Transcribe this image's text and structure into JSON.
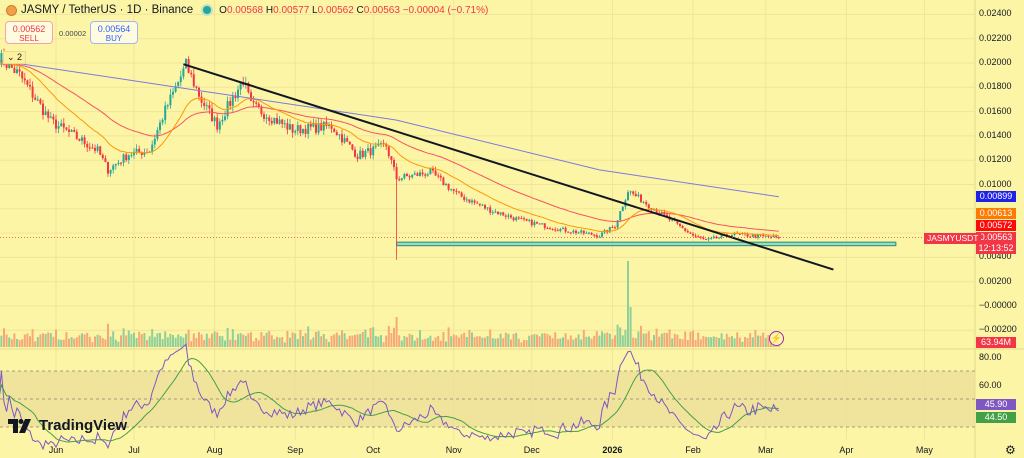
{
  "header": {
    "symbol": "JASMY / TetherUS · 1D · Binance",
    "open_label": "O",
    "open": "0.00568",
    "high_label": "H",
    "high": "0.00577",
    "low_label": "L",
    "low": "0.00562",
    "close_label": "C",
    "close": "0.00563",
    "change": "−0.00004 (−0.71%)"
  },
  "trade": {
    "sell_price": "0.00562",
    "sell_label": "SELL",
    "spread": "0.00002",
    "buy_price": "0.00564",
    "buy_label": "BUY"
  },
  "legend_toggle": "⌄ 2",
  "price_axis": [
    "0.02400",
    "0.02200",
    "0.02000",
    "0.01800",
    "0.01600",
    "0.01400",
    "0.01200",
    "0.01000",
    "0.00400",
    "0.00200",
    "−0.00000",
    "−0.00200"
  ],
  "tags": {
    "ma_blue": "0.00899",
    "ema_orange": "0.00613",
    "ema_red": "0.00572",
    "last": "0.00563",
    "countdown": "12:13:52",
    "symbol": "JASMYUSDT",
    "volume": "63.94M",
    "rsi": "45.90",
    "rsi_ma": "44.50"
  },
  "rsi_axis": [
    "80.00",
    "60.00"
  ],
  "time_axis": [
    {
      "label": "Jun",
      "date": "2025-06-01"
    },
    {
      "label": "Jul",
      "date": "2025-07-01"
    },
    {
      "label": "Aug",
      "date": "2025-08-01"
    },
    {
      "label": "Sep",
      "date": "2025-09-01"
    },
    {
      "label": "Oct",
      "date": "2025-10-01"
    },
    {
      "label": "Nov",
      "date": "2025-11-01"
    },
    {
      "label": "Dec",
      "date": "2025-12-01"
    },
    {
      "label": "2026",
      "date": "2026-01-01",
      "bold": true
    },
    {
      "label": "Feb",
      "date": "2026-02-01"
    },
    {
      "label": "Mar",
      "date": "2026-03-01"
    },
    {
      "label": "Apr",
      "date": "2026-04-01"
    },
    {
      "label": "May",
      "date": "2026-05-01"
    }
  ],
  "logo": "TradingView",
  "colors": {
    "up": "#26a69a",
    "down": "#f23645",
    "background": "#fdf5a6",
    "ma200": "#7b79e0",
    "ema_fast": "#ff9800",
    "ema_slow": "#f7525f",
    "rsi": "#7e57c2",
    "rsi_ma": "#43a047",
    "trendline": "#131722",
    "support": "#2e9e8f"
  },
  "chart_data": {
    "type": "candlestick",
    "x_type": "date",
    "ylim": [
      -0.002,
      0.0245
    ],
    "grid": true,
    "close_anchors": [
      [
        "2025-05-10",
        0.0205
      ],
      [
        "2025-05-18",
        0.019
      ],
      [
        "2025-05-30",
        0.0152
      ],
      [
        "2025-06-17",
        0.0128
      ],
      [
        "2025-06-21",
        0.0112
      ],
      [
        "2025-06-29",
        0.0125
      ],
      [
        "2025-07-07",
        0.0128
      ],
      [
        "2025-07-13",
        0.0161
      ],
      [
        "2025-07-21",
        0.0198
      ],
      [
        "2025-07-27",
        0.0169
      ],
      [
        "2025-08-02",
        0.0149
      ],
      [
        "2025-08-12",
        0.0186
      ],
      [
        "2025-08-15",
        0.0165
      ],
      [
        "2025-08-31",
        0.0145
      ],
      [
        "2025-09-15",
        0.0148
      ],
      [
        "2025-09-25",
        0.0124
      ],
      [
        "2025-10-06",
        0.0132
      ],
      [
        "2025-10-10",
        0.0105
      ],
      [
        "2025-10-23",
        0.011
      ],
      [
        "2025-11-03",
        0.0091
      ],
      [
        "2025-11-15",
        0.0079
      ],
      [
        "2025-11-26",
        0.0071
      ],
      [
        "2025-12-12",
        0.0063
      ],
      [
        "2025-12-27",
        0.0058
      ],
      [
        "2026-01-02",
        0.0066
      ],
      [
        "2026-01-07",
        0.0095
      ],
      [
        "2026-01-15",
        0.0083
      ],
      [
        "2026-01-23",
        0.0071
      ],
      [
        "2026-02-01",
        0.0058
      ],
      [
        "2026-02-06",
        0.0054
      ],
      [
        "2026-02-16",
        0.0059
      ],
      [
        "2026-03-06",
        0.00563
      ]
    ],
    "crash_wick": {
      "date": "2025-10-10",
      "low": 0.0038
    },
    "ma200_anchors": [
      [
        "2025-05-10",
        0.0202
      ],
      [
        "2025-07-27",
        0.0177
      ],
      [
        "2025-10-10",
        0.0153
      ],
      [
        "2025-12-27",
        0.0112
      ],
      [
        "2026-03-06",
        0.00899
      ]
    ],
    "trendline": [
      [
        "2025-07-20",
        0.0199
      ],
      [
        "2026-03-27",
        0.003
      ]
    ],
    "support_zone": {
      "from": "2025-10-10",
      "to": "2026-04-20",
      "low": 0.00497,
      "high": 0.00525
    },
    "volume_spike": {
      "date": "2026-01-07"
    },
    "volume_last": "63.94M",
    "rsi": {
      "period": 14,
      "last": 45.9,
      "ma_last": 44.5,
      "bands": [
        70,
        50,
        30
      ],
      "ylim": [
        20,
        85
      ]
    }
  }
}
